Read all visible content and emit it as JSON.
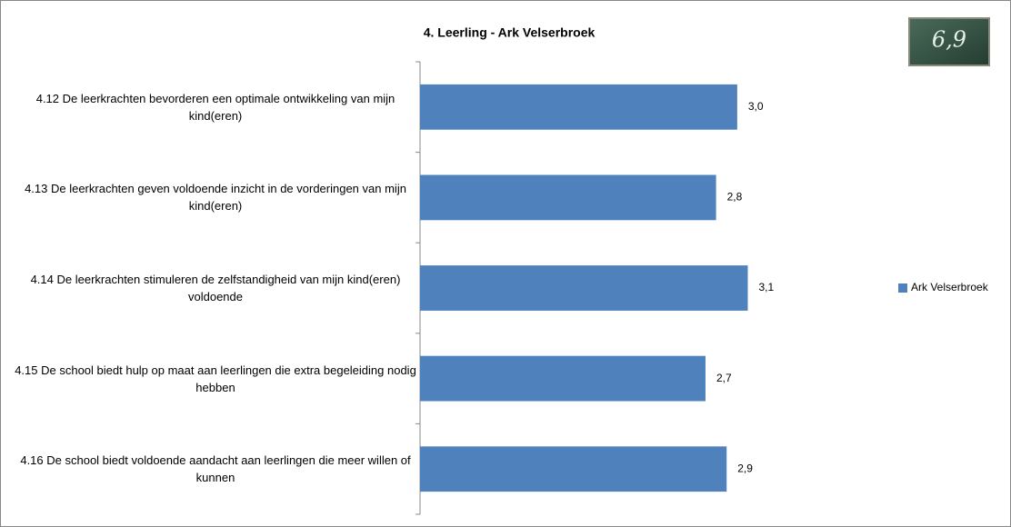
{
  "chart_data": {
    "type": "bar",
    "orientation": "horizontal",
    "title": "4. Leerling - Ark Velserbroek",
    "score": "6,9",
    "categories": [
      "4.12 De leerkrachten bevorderen een optimale ontwikkeling van mijn kind(eren)",
      "4.13 De leerkrachten geven voldoende inzicht in de vorderingen van mijn kind(eren)",
      "4.14 De leerkrachten stimuleren de zelfstandigheid van mijn kind(eren) voldoende",
      "4.15 De school biedt hulp op maat aan leerlingen die extra begeleiding nodig hebben",
      "4.16 De school biedt voldoende aandacht aan leerlingen die meer willen of kunnen"
    ],
    "series": [
      {
        "name": "Ark Velserbroek",
        "color": "#4f81bd",
        "values": [
          3.0,
          2.8,
          3.1,
          2.7,
          2.9
        ],
        "value_labels": [
          "3,0",
          "2,8",
          "3,1",
          "2,7",
          "2,9"
        ]
      }
    ],
    "xlim": [
      0,
      3.5
    ],
    "legend": "right"
  }
}
